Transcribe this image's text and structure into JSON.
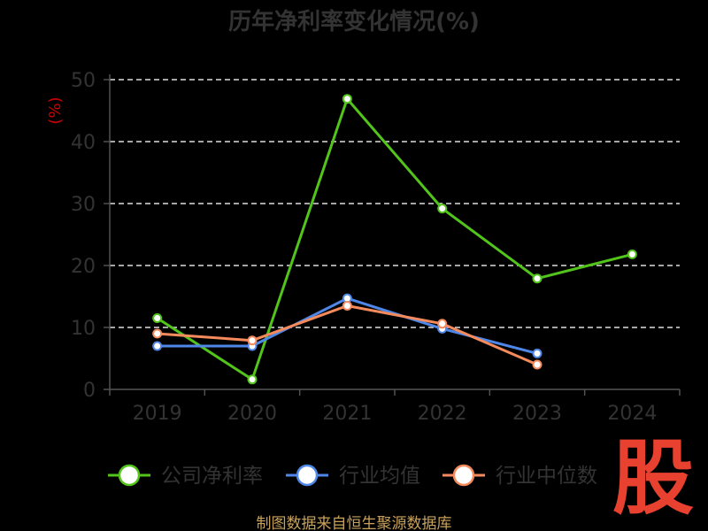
{
  "title": "历年净利率变化情况(%)",
  "source_text": "制图数据来自恒生聚源数据库",
  "watermark_char": "股",
  "colors": {
    "company": "#52c41a",
    "industry_avg": "#4f87e8",
    "industry_median": "#f58a5c",
    "grid": "#dddddd",
    "axis": "#555555",
    "unit": "#cc0000",
    "source": "#c8a25a",
    "watermark": "#e8412f"
  },
  "chart_data": {
    "type": "line",
    "title": "历年净利率变化情况(%)",
    "ylabel": "(%)",
    "xlabel": "",
    "ylim": [
      0,
      50
    ],
    "yticks": [
      0,
      10,
      20,
      30,
      40,
      50
    ],
    "grid": true,
    "legend_position": "bottom",
    "categories": [
      "2019",
      "2020",
      "2021",
      "2022",
      "2023",
      "2024"
    ],
    "series": [
      {
        "name": "公司净利率",
        "values": [
          11.5,
          1.6,
          46.9,
          29.2,
          17.9,
          21.8
        ]
      },
      {
        "name": "行业均值",
        "values": [
          7.0,
          7.0,
          14.7,
          9.8,
          5.8,
          null
        ]
      },
      {
        "name": "行业中位数",
        "values": [
          9.0,
          7.9,
          13.5,
          10.6,
          4.0,
          null
        ]
      }
    ]
  }
}
